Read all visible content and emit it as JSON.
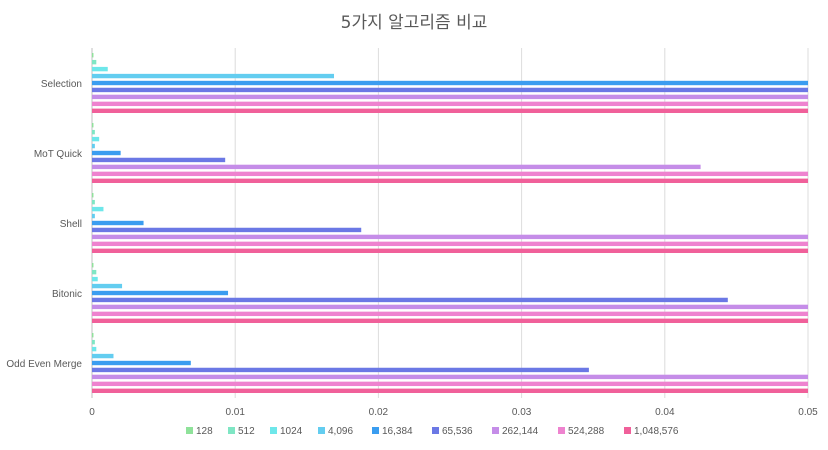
{
  "chart_data": {
    "type": "bar",
    "orientation": "horizontal",
    "title": "5가지 알고리즘 비교",
    "xlabel": "",
    "ylabel": "",
    "xlim": [
      0,
      0.05
    ],
    "x_ticks": [
      "0",
      "0.01",
      "0.02",
      "0.03",
      "0.04",
      "0.05"
    ],
    "grid": true,
    "legend_position": "bottom",
    "categories": [
      "Selection",
      "MoT Quick",
      "Shell",
      "Bitonic",
      "Odd Even Merge"
    ],
    "series": [
      {
        "name": "128",
        "color": "#8fe29a",
        "values": [
          0.0001,
          0.0001,
          0.0001,
          0.0001,
          0.0001
        ]
      },
      {
        "name": "512",
        "color": "#7fe6c4",
        "values": [
          0.0003,
          0.0002,
          0.0002,
          0.0003,
          0.0002
        ]
      },
      {
        "name": "1024",
        "color": "#6ee7ea",
        "values": [
          0.0011,
          0.0005,
          0.0008,
          0.0004,
          0.0003
        ]
      },
      {
        "name": "4,096",
        "color": "#63cdf0",
        "values": [
          0.0169,
          0.0002,
          0.0002,
          0.0021,
          0.0015
        ]
      },
      {
        "name": "16,384",
        "color": "#3a9df0",
        "values": [
          0.05,
          0.002,
          0.0036,
          0.0095,
          0.0069
        ]
      },
      {
        "name": "65,536",
        "color": "#6b78e5",
        "values": [
          0.05,
          0.0093,
          0.0188,
          0.0444,
          0.0347
        ]
      },
      {
        "name": "262,144",
        "color": "#c58de8",
        "values": [
          0.05,
          0.0425,
          0.05,
          0.05,
          0.05
        ]
      },
      {
        "name": "524,288",
        "color": "#ee83cf",
        "values": [
          0.05,
          0.05,
          0.05,
          0.05,
          0.05
        ]
      },
      {
        "name": "1,048,576",
        "color": "#f0609a",
        "values": [
          0.05,
          0.05,
          0.05,
          0.05,
          0.05
        ]
      }
    ]
  }
}
